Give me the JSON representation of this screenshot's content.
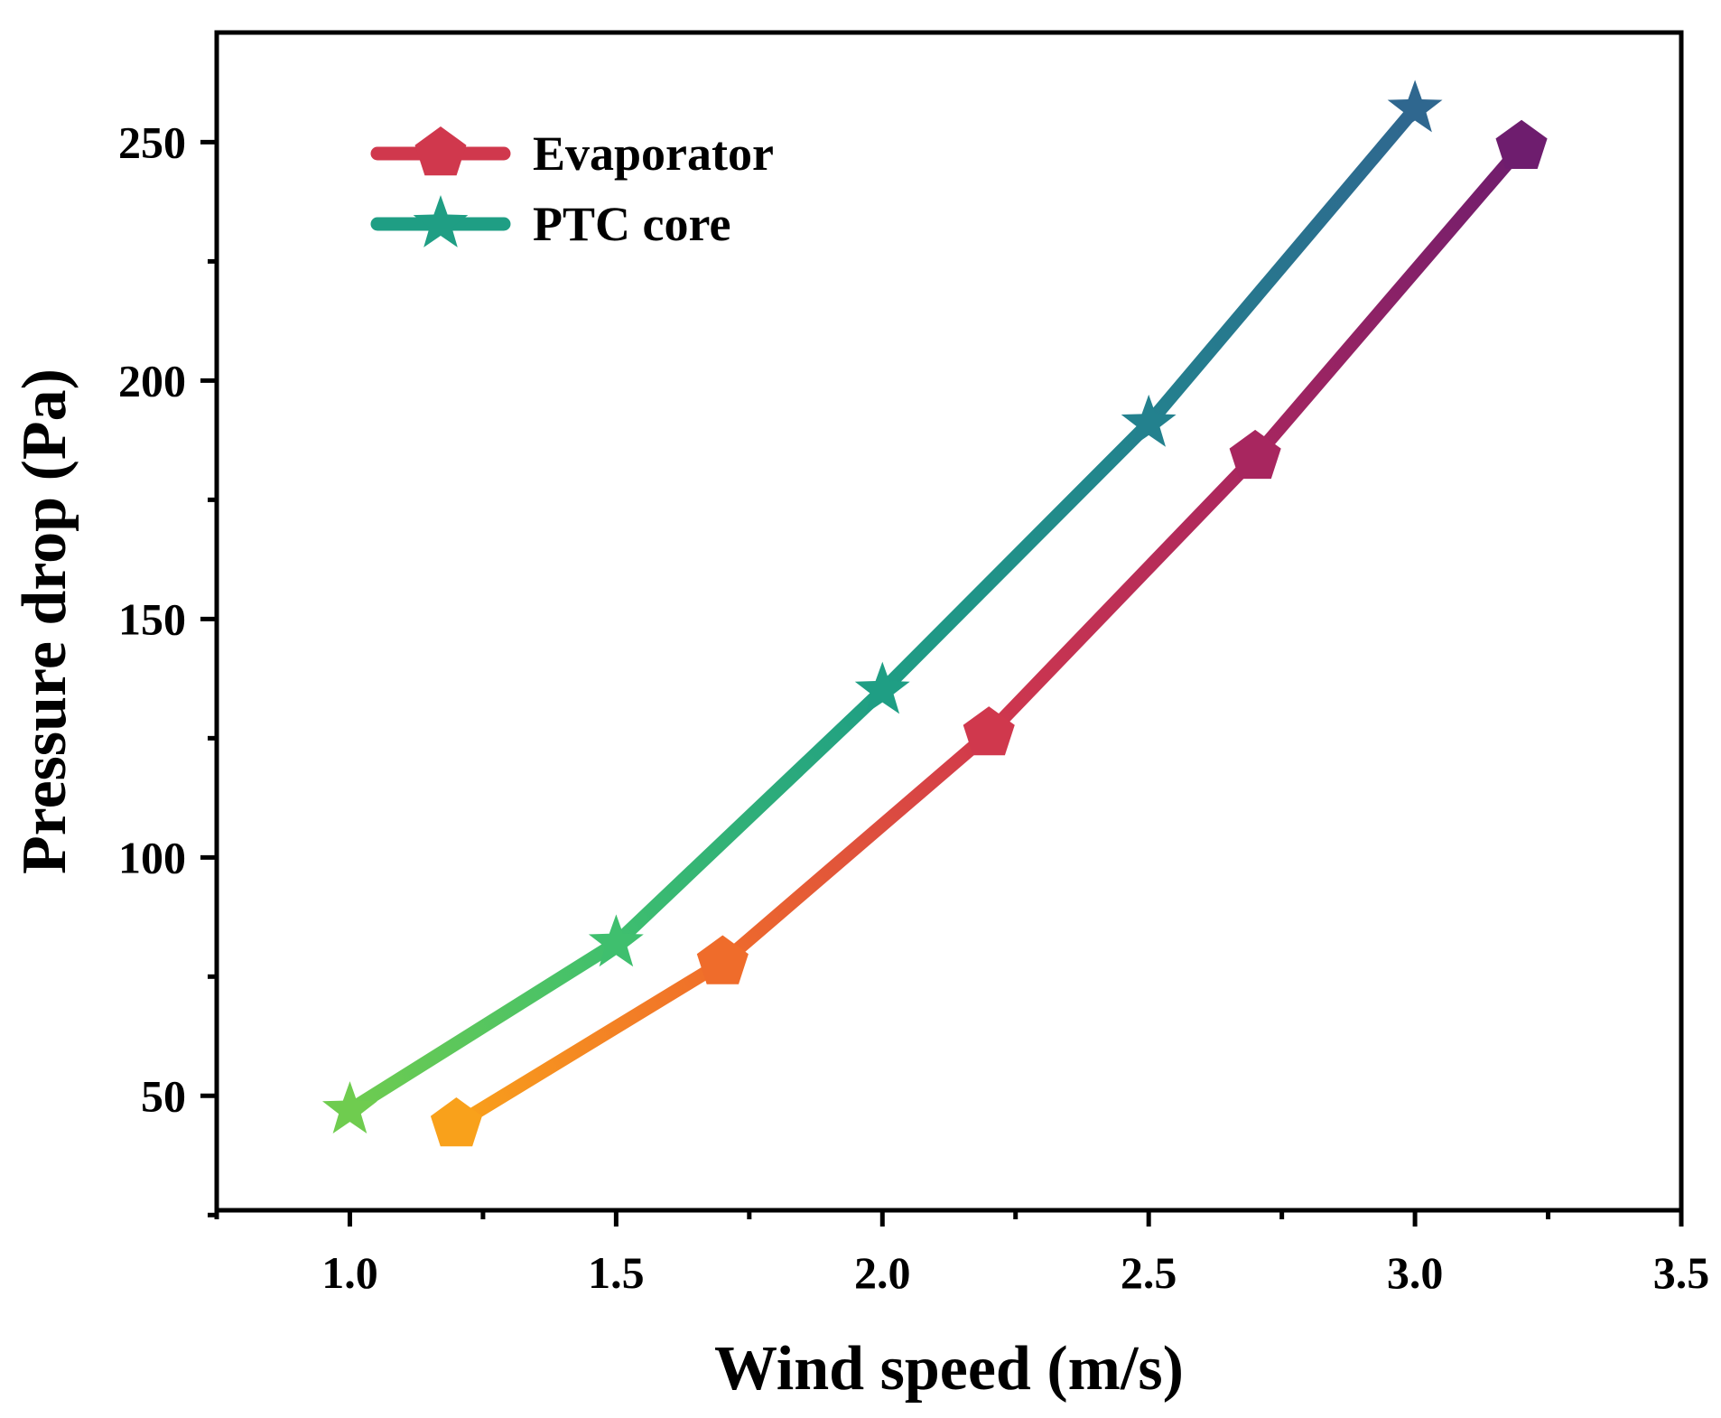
{
  "chart_data": {
    "type": "line",
    "title": "",
    "xlabel": "Wind speed (m/s)",
    "ylabel": "Pressure drop (Pa)",
    "xlim": [
      0.75,
      3.5
    ],
    "ylim": [
      26,
      273
    ],
    "x_ticks": [
      "1.0",
      "1.5",
      "2.0",
      "2.5",
      "3.0",
      "3.5"
    ],
    "x_tick_values": [
      1.0,
      1.5,
      2.0,
      2.5,
      3.0,
      3.5
    ],
    "y_ticks": [
      "50",
      "100",
      "150",
      "200",
      "250"
    ],
    "y_tick_values": [
      50,
      100,
      150,
      200,
      250
    ],
    "legend_position": "top-left",
    "series": [
      {
        "name": "Evaporator",
        "marker": "pentagon",
        "x": [
          1.2,
          1.7,
          2.2,
          2.7,
          3.2
        ],
        "y": [
          44,
          78,
          126,
          184,
          249
        ],
        "colors": [
          "#f9a11b",
          "#ef6c2b",
          "#d0384d",
          "#a8265f",
          "#6e1d6e"
        ],
        "legend_color": "#d0384d"
      },
      {
        "name": "PTC core",
        "marker": "star",
        "x": [
          1.0,
          1.5,
          2.0,
          2.5,
          3.0
        ],
        "y": [
          47,
          82,
          135,
          191,
          257
        ],
        "colors": [
          "#6fcc4f",
          "#3fbf6e",
          "#1f9e84",
          "#23818e",
          "#2f678f"
        ],
        "legend_color": "#1f9e84"
      }
    ]
  }
}
